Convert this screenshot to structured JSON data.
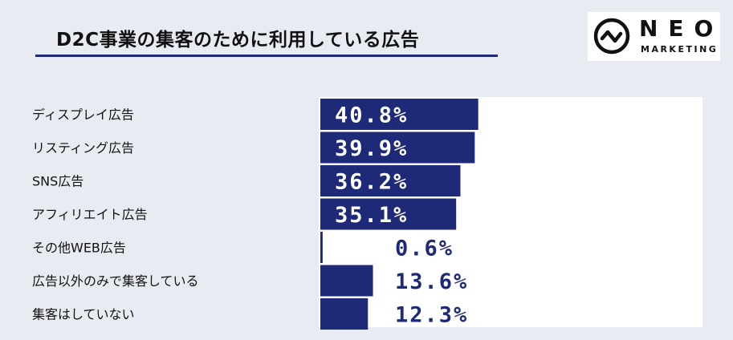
{
  "title": "D2C事業の集客のために利用している広告",
  "logo": {
    "name": "NEO",
    "sub": "MARKETING"
  },
  "colors": {
    "bar": "#1e2a78",
    "title_rule": "#1e2a78",
    "background": "#e9ebf3",
    "label_on_bar": "#ffffff",
    "label_off_bar": "#1e2a78"
  },
  "chart_data": {
    "type": "bar",
    "orientation": "horizontal",
    "categories": [
      "ディスプレイ広告",
      "リスティング広告",
      "SNS広告",
      "アフィリエイト広告",
      "その他WEB広告",
      "広告以外のみで集客している",
      "集客はしていない"
    ],
    "values": [
      40.8,
      39.9,
      36.2,
      35.1,
      0.6,
      13.6,
      12.3
    ],
    "data_labels": [
      "40.8%",
      "39.9%",
      "36.2%",
      "35.1%",
      "0.6%",
      "13.6%",
      "12.3%"
    ],
    "unit": "%",
    "xlim": [
      0,
      100
    ],
    "grid": false,
    "legend": "none"
  }
}
